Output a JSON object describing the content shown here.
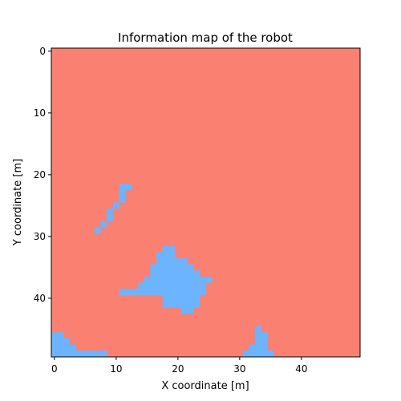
{
  "chart_data": {
    "type": "heatmap",
    "title": "Information map of the robot",
    "xlabel": "X coordinate [m]",
    "ylabel": "Y coordinate [m]",
    "xlim": [
      -0.5,
      49.5
    ],
    "ylim": [
      49.5,
      -0.5
    ],
    "x_ticks": [
      "0",
      "10",
      "20",
      "30",
      "40"
    ],
    "y_ticks": [
      "0",
      "10",
      "20",
      "30",
      "40"
    ],
    "grid": false,
    "legend": "none",
    "colors": {
      "background_value": "#fa8072",
      "explored_value": "#6cb4ff"
    },
    "explored_cells": [
      [
        11,
        22
      ],
      [
        12,
        22
      ],
      [
        11,
        23
      ],
      [
        11,
        24
      ],
      [
        10,
        25
      ],
      [
        9,
        26
      ],
      [
        9,
        27
      ],
      [
        8,
        28
      ],
      [
        7,
        29
      ],
      [
        18,
        32
      ],
      [
        19,
        32
      ],
      [
        17,
        33
      ],
      [
        18,
        33
      ],
      [
        19,
        33
      ],
      [
        17,
        34
      ],
      [
        18,
        34
      ],
      [
        19,
        34
      ],
      [
        20,
        34
      ],
      [
        21,
        34
      ],
      [
        16,
        35
      ],
      [
        17,
        35
      ],
      [
        18,
        35
      ],
      [
        19,
        35
      ],
      [
        20,
        35
      ],
      [
        21,
        35
      ],
      [
        22,
        35
      ],
      [
        16,
        36
      ],
      [
        17,
        36
      ],
      [
        18,
        36
      ],
      [
        19,
        36
      ],
      [
        20,
        36
      ],
      [
        21,
        36
      ],
      [
        22,
        36
      ],
      [
        23,
        36
      ],
      [
        15,
        37
      ],
      [
        16,
        37
      ],
      [
        17,
        37
      ],
      [
        18,
        37
      ],
      [
        19,
        37
      ],
      [
        20,
        37
      ],
      [
        21,
        37
      ],
      [
        22,
        37
      ],
      [
        23,
        37
      ],
      [
        24,
        37
      ],
      [
        25,
        37
      ],
      [
        14,
        38
      ],
      [
        15,
        38
      ],
      [
        16,
        38
      ],
      [
        17,
        38
      ],
      [
        18,
        38
      ],
      [
        19,
        38
      ],
      [
        20,
        38
      ],
      [
        21,
        38
      ],
      [
        22,
        38
      ],
      [
        23,
        38
      ],
      [
        24,
        38
      ],
      [
        11,
        39
      ],
      [
        12,
        39
      ],
      [
        13,
        39
      ],
      [
        14,
        39
      ],
      [
        15,
        39
      ],
      [
        16,
        39
      ],
      [
        17,
        39
      ],
      [
        18,
        39
      ],
      [
        19,
        39
      ],
      [
        20,
        39
      ],
      [
        21,
        39
      ],
      [
        22,
        39
      ],
      [
        23,
        39
      ],
      [
        24,
        39
      ],
      [
        18,
        40
      ],
      [
        19,
        40
      ],
      [
        20,
        40
      ],
      [
        21,
        40
      ],
      [
        22,
        40
      ],
      [
        23,
        40
      ],
      [
        18,
        41
      ],
      [
        19,
        41
      ],
      [
        20,
        41
      ],
      [
        21,
        41
      ],
      [
        22,
        41
      ],
      [
        23,
        41
      ],
      [
        21,
        42
      ],
      [
        22,
        42
      ],
      [
        33,
        45
      ],
      [
        33,
        46
      ],
      [
        34,
        46
      ],
      [
        33,
        47
      ],
      [
        34,
        47
      ],
      [
        0,
        46
      ],
      [
        1,
        46
      ],
      [
        0,
        47
      ],
      [
        1,
        47
      ],
      [
        2,
        47
      ],
      [
        32,
        48
      ],
      [
        33,
        48
      ],
      [
        34,
        48
      ],
      [
        0,
        48
      ],
      [
        1,
        48
      ],
      [
        2,
        48
      ],
      [
        3,
        48
      ],
      [
        31,
        49
      ],
      [
        32,
        49
      ],
      [
        33,
        49
      ],
      [
        34,
        49
      ],
      [
        35,
        49
      ],
      [
        0,
        49
      ],
      [
        1,
        49
      ],
      [
        2,
        49
      ],
      [
        3,
        49
      ],
      [
        4,
        49
      ],
      [
        5,
        49
      ],
      [
        6,
        49
      ],
      [
        7,
        49
      ],
      [
        8,
        49
      ]
    ]
  }
}
